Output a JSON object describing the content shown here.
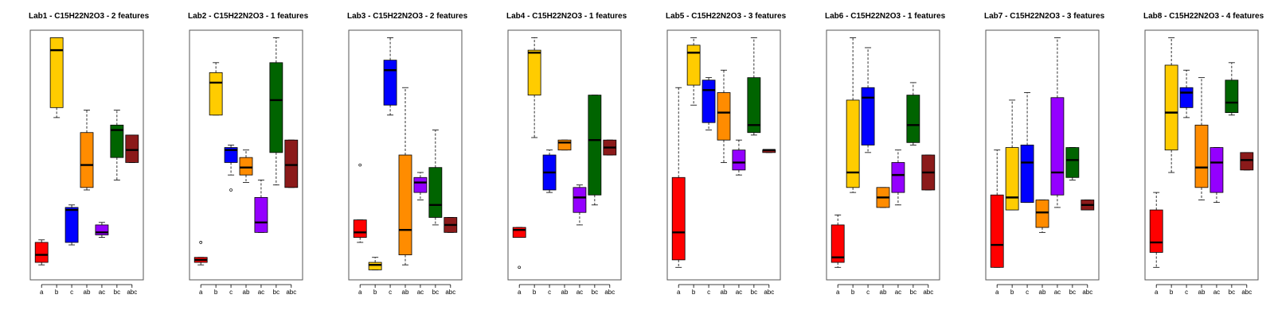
{
  "chart_data": [
    {
      "type": "boxplot",
      "title": "Lab1 - C15H22N2O3 - 2 features",
      "categories": [
        "a",
        "b",
        "c",
        "ab",
        "ac",
        "bc",
        "abc"
      ],
      "box_colors": [
        "#ff0000",
        "#ffcc00",
        "#0000ff",
        "#ff8c00",
        "#9400ff",
        "#006400",
        "#8b1a1a"
      ],
      "ylim": [
        0,
        100
      ],
      "boxes": [
        {
          "low": 6,
          "q1": 7,
          "median": 10,
          "q3": 15,
          "high": 16,
          "outliers": []
        },
        {
          "low": 65,
          "q1": 69,
          "median": 92,
          "q3": 97,
          "high": 97,
          "outliers": []
        },
        {
          "low": 14,
          "q1": 15,
          "median": 28,
          "q3": 29,
          "high": 30,
          "outliers": []
        },
        {
          "low": 36,
          "q1": 37,
          "median": 46,
          "q3": 59,
          "high": 68,
          "outliers": []
        },
        {
          "low": 17,
          "q1": 18,
          "median": 19,
          "q3": 22,
          "high": 23,
          "outliers": []
        },
        {
          "low": 40,
          "q1": 49,
          "median": 60,
          "q3": 62,
          "high": 68,
          "outliers": []
        },
        {
          "low": 47,
          "q1": 47,
          "median": 52,
          "q3": 58,
          "high": 58,
          "outliers": []
        }
      ]
    },
    {
      "type": "boxplot",
      "title": "Lab2 - C15H22N2O3 - 1 features",
      "categories": [
        "a",
        "b",
        "c",
        "ab",
        "ac",
        "bc",
        "abc"
      ],
      "box_colors": [
        "#ff0000",
        "#ffcc00",
        "#0000ff",
        "#ff8c00",
        "#9400ff",
        "#006400",
        "#8b1a1a"
      ],
      "ylim": [
        0,
        100
      ],
      "boxes": [
        {
          "low": 6,
          "q1": 7,
          "median": 8,
          "q3": 9,
          "high": 9,
          "outliers": [
            15
          ]
        },
        {
          "low": 66,
          "q1": 66,
          "median": 79,
          "q3": 83,
          "high": 87,
          "outliers": []
        },
        {
          "low": 42,
          "q1": 47,
          "median": 52,
          "q3": 53,
          "high": 54,
          "outliers": [
            36
          ]
        },
        {
          "low": 39,
          "q1": 42,
          "median": 45,
          "q3": 49,
          "high": 52,
          "outliers": []
        },
        {
          "low": 19,
          "q1": 19,
          "median": 23,
          "q3": 33,
          "high": 40,
          "outliers": []
        },
        {
          "low": 38,
          "q1": 51,
          "median": 72,
          "q3": 87,
          "high": 97,
          "outliers": []
        },
        {
          "low": 37,
          "q1": 37,
          "median": 46,
          "q3": 56,
          "high": 56,
          "outliers": []
        }
      ]
    },
    {
      "type": "boxplot",
      "title": "Lab3 - C15H22N2O3 - 2 features",
      "categories": [
        "a",
        "b",
        "c",
        "ab",
        "ac",
        "bc",
        "abc"
      ],
      "box_colors": [
        "#ff0000",
        "#ffcc00",
        "#0000ff",
        "#ff8c00",
        "#9400ff",
        "#006400",
        "#8b1a1a"
      ],
      "ylim": [
        0,
        100
      ],
      "boxes": [
        {
          "low": 15,
          "q1": 17,
          "median": 19,
          "q3": 24,
          "high": 24,
          "outliers": [
            46
          ]
        },
        {
          "low": 4,
          "q1": 4,
          "median": 6,
          "q3": 7,
          "high": 9,
          "outliers": []
        },
        {
          "low": 66,
          "q1": 70,
          "median": 84,
          "q3": 88,
          "high": 97,
          "outliers": []
        },
        {
          "low": 6,
          "q1": 10,
          "median": 20,
          "q3": 50,
          "high": 77,
          "outliers": []
        },
        {
          "low": 32,
          "q1": 35,
          "median": 39,
          "q3": 41,
          "high": 43,
          "outliers": []
        },
        {
          "low": 22,
          "q1": 25,
          "median": 30,
          "q3": 45,
          "high": 60,
          "outliers": []
        },
        {
          "low": 19,
          "q1": 19,
          "median": 22,
          "q3": 25,
          "high": 25,
          "outliers": []
        }
      ]
    },
    {
      "type": "boxplot",
      "title": "Lab4 - C15H22N2O3 - 1 features",
      "categories": [
        "a",
        "b",
        "c",
        "ab",
        "ac",
        "bc",
        "abc"
      ],
      "box_colors": [
        "#ff0000",
        "#ffcc00",
        "#0000ff",
        "#ff8c00",
        "#9400ff",
        "#006400",
        "#8b1a1a"
      ],
      "ylim": [
        0,
        100
      ],
      "boxes": [
        {
          "low": 17,
          "q1": 17,
          "median": 20,
          "q3": 21,
          "high": 21,
          "outliers": [
            5
          ]
        },
        {
          "low": 57,
          "q1": 74,
          "median": 91,
          "q3": 92,
          "high": 97,
          "outliers": []
        },
        {
          "low": 35,
          "q1": 36,
          "median": 43,
          "q3": 50,
          "high": 52,
          "outliers": []
        },
        {
          "low": 52,
          "q1": 52,
          "median": 55,
          "q3": 56,
          "high": 56,
          "outliers": []
        },
        {
          "low": 22,
          "q1": 27,
          "median": 33,
          "q3": 37,
          "high": 38,
          "outliers": []
        },
        {
          "low": 30,
          "q1": 34,
          "median": 56,
          "q3": 74,
          "high": 74,
          "outliers": []
        },
        {
          "low": 50,
          "q1": 50,
          "median": 53,
          "q3": 56,
          "high": 56,
          "outliers": []
        }
      ]
    },
    {
      "type": "boxplot",
      "title": "Lab5 - C15H22N2O3 - 3 features",
      "categories": [
        "a",
        "b",
        "c",
        "ab",
        "ac",
        "bc",
        "abc"
      ],
      "box_colors": [
        "#ff0000",
        "#ffcc00",
        "#0000ff",
        "#ff8c00",
        "#9400ff",
        "#006400",
        "#8b1a1a"
      ],
      "ylim": [
        0,
        100
      ],
      "boxes": [
        {
          "low": 5,
          "q1": 8,
          "median": 19,
          "q3": 41,
          "high": 77,
          "outliers": []
        },
        {
          "low": 70,
          "q1": 78,
          "median": 91,
          "q3": 94,
          "high": 97,
          "outliers": []
        },
        {
          "low": 60,
          "q1": 63,
          "median": 76,
          "q3": 80,
          "high": 81,
          "outliers": []
        },
        {
          "low": 47,
          "q1": 56,
          "median": 67,
          "q3": 75,
          "high": 84,
          "outliers": []
        },
        {
          "low": 42,
          "q1": 44,
          "median": 47,
          "q3": 52,
          "high": 56,
          "outliers": []
        },
        {
          "low": 58,
          "q1": 59,
          "median": 62,
          "q3": 81,
          "high": 97,
          "outliers": []
        },
        {
          "low": 51,
          "q1": 51,
          "median": 52,
          "q3": 52,
          "high": 52,
          "outliers": []
        }
      ]
    },
    {
      "type": "boxplot",
      "title": "Lab6 - C15H22N2O3 - 1 features",
      "categories": [
        "a",
        "b",
        "c",
        "ab",
        "ac",
        "bc",
        "abc"
      ],
      "box_colors": [
        "#ff0000",
        "#ffcc00",
        "#0000ff",
        "#ff8c00",
        "#9400ff",
        "#006400",
        "#8b1a1a"
      ],
      "ylim": [
        0,
        100
      ],
      "boxes": [
        {
          "low": 5,
          "q1": 7,
          "median": 9,
          "q3": 22,
          "high": 26,
          "outliers": []
        },
        {
          "low": 35,
          "q1": 37,
          "median": 43,
          "q3": 72,
          "high": 97,
          "outliers": []
        },
        {
          "low": 51,
          "q1": 54,
          "median": 73,
          "q3": 77,
          "high": 93,
          "outliers": []
        },
        {
          "low": 29,
          "q1": 29,
          "median": 33,
          "q3": 37,
          "high": 37,
          "outliers": []
        },
        {
          "low": 30,
          "q1": 35,
          "median": 42,
          "q3": 47,
          "high": 52,
          "outliers": []
        },
        {
          "low": 54,
          "q1": 55,
          "median": 62,
          "q3": 74,
          "high": 79,
          "outliers": []
        },
        {
          "low": 36,
          "q1": 36,
          "median": 43,
          "q3": 50,
          "high": 50,
          "outliers": []
        }
      ]
    },
    {
      "type": "boxplot",
      "title": "Lab7 - C15H22N2O3 - 3 features",
      "categories": [
        "a",
        "b",
        "c",
        "ab",
        "ac",
        "bc",
        "abc"
      ],
      "box_colors": [
        "#ff0000",
        "#ffcc00",
        "#0000ff",
        "#ff8c00",
        "#9400ff",
        "#006400",
        "#8b1a1a"
      ],
      "ylim": [
        0,
        100
      ],
      "boxes": [
        {
          "low": 5,
          "q1": 5,
          "median": 14,
          "q3": 34,
          "high": 52,
          "outliers": []
        },
        {
          "low": 28,
          "q1": 28,
          "median": 33,
          "q3": 53,
          "high": 72,
          "outliers": []
        },
        {
          "low": 31,
          "q1": 31,
          "median": 47,
          "q3": 54,
          "high": 75,
          "outliers": []
        },
        {
          "low": 19,
          "q1": 21,
          "median": 27,
          "q3": 32,
          "high": 32,
          "outliers": []
        },
        {
          "low": 29,
          "q1": 34,
          "median": 43,
          "q3": 73,
          "high": 97,
          "outliers": []
        },
        {
          "low": 40,
          "q1": 41,
          "median": 48,
          "q3": 53,
          "high": 53,
          "outliers": []
        },
        {
          "low": 28,
          "q1": 28,
          "median": 30,
          "q3": 32,
          "high": 32,
          "outliers": []
        }
      ]
    },
    {
      "type": "boxplot",
      "title": "Lab8 - C15H22N2O3 - 4 features",
      "categories": [
        "a",
        "b",
        "c",
        "ab",
        "ac",
        "bc",
        "abc"
      ],
      "box_colors": [
        "#ff0000",
        "#ffcc00",
        "#0000ff",
        "#ff8c00",
        "#9400ff",
        "#006400",
        "#8b1a1a"
      ],
      "ylim": [
        0,
        100
      ],
      "boxes": [
        {
          "low": 5,
          "q1": 11,
          "median": 15,
          "q3": 28,
          "high": 35,
          "outliers": []
        },
        {
          "low": 43,
          "q1": 52,
          "median": 67,
          "q3": 86,
          "high": 97,
          "outliers": []
        },
        {
          "low": 65,
          "q1": 69,
          "median": 75,
          "q3": 77,
          "high": 84,
          "outliers": []
        },
        {
          "low": 32,
          "q1": 37,
          "median": 45,
          "q3": 62,
          "high": 81,
          "outliers": []
        },
        {
          "low": 31,
          "q1": 35,
          "median": 47,
          "q3": 53,
          "high": 53,
          "outliers": []
        },
        {
          "low": 66,
          "q1": 67,
          "median": 71,
          "q3": 80,
          "high": 87,
          "outliers": []
        },
        {
          "low": 44,
          "q1": 44,
          "median": 48,
          "q3": 51,
          "high": 51,
          "outliers": []
        }
      ]
    }
  ]
}
